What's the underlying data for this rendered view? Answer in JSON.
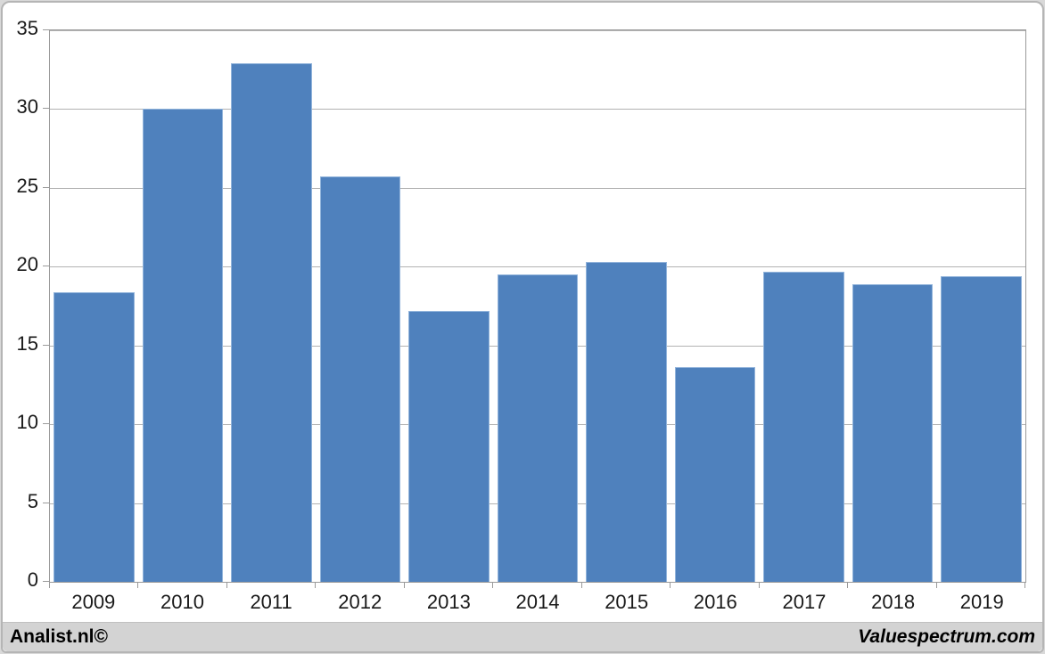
{
  "chart_data": {
    "type": "bar",
    "title": "",
    "categories": [
      "2009",
      "2010",
      "2011",
      "2012",
      "2013",
      "2014",
      "2015",
      "2016",
      "2017",
      "2018",
      "2019"
    ],
    "values": [
      18.4,
      30.0,
      32.9,
      25.7,
      17.2,
      19.5,
      20.3,
      13.6,
      19.7,
      18.9,
      19.4
    ],
    "xlabel": "",
    "ylabel": "",
    "ylim": [
      0,
      35
    ],
    "yticks": [
      0,
      5,
      10,
      15,
      20,
      25,
      30,
      35
    ],
    "grid": "horizontal",
    "legend_position": "none",
    "bar_color": "#4f81bd",
    "bar_border_color": "#92b4db",
    "gridline_color": "#b2b2b2",
    "axis_color": "#9a9a9a"
  },
  "footer": {
    "left_text": "Analist.nl©",
    "right_text": "Valuespectrum.com"
  }
}
